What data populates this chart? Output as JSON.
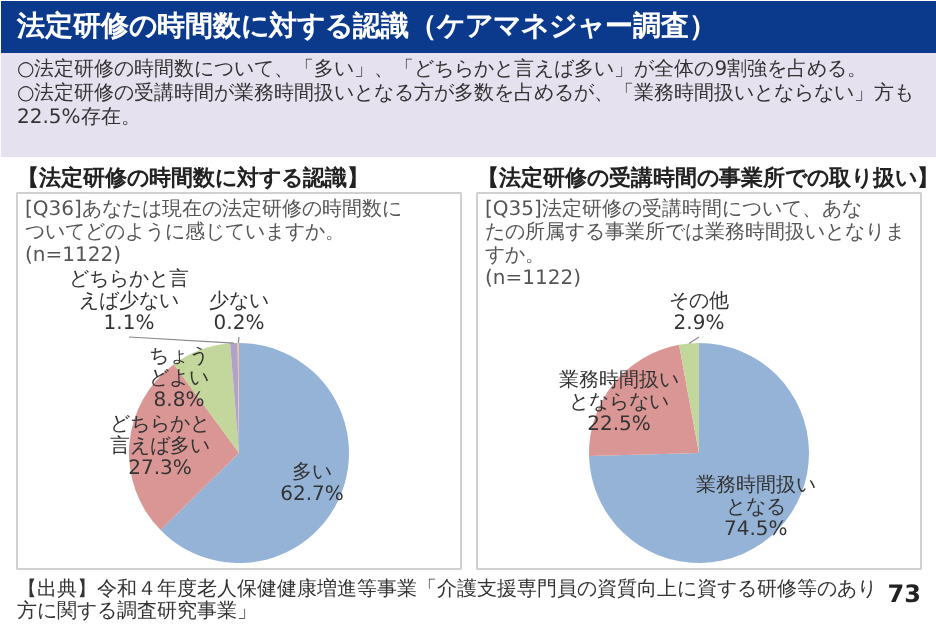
{
  "chart_data": [
    {
      "type": "other",
      "title": "法定研修の時間数に対する認識（ケアマネジャー調査）",
      "annotations": [
        "○法定研修の時間数について、「多い」、「どちらかと言えば多い」が全体の9割強を占める。",
        "○法定研修の受講時間が業務時間扱いとなる方が多数を占めるが、「業務時間扱いとならない」方も22.5%存在。",
        "【出典】令和４年度老人保健健康増進等事業「介護支援専門員の資質向上に資する研修等のあり方に関する調査研究事業」",
        "73"
      ]
    },
    {
      "type": "pie",
      "title": "【法定研修の時間数に対する認識】",
      "subtitle": "[Q36]あなたは現在の法定研修の時間数についてどのように感じていますか。",
      "annotations": [
        "(n=1122)"
      ],
      "categories": [
        "多い",
        "どちらかと言えば多い",
        "ちょうどよい",
        "どちらかと言えば少ない",
        "少ない"
      ],
      "values": [
        62.7,
        27.3,
        8.8,
        1.1,
        0.2
      ],
      "colors": [
        "#95b3d7",
        "#d99694",
        "#c3d69b",
        "#b3a2c7",
        "#fac090"
      ],
      "value_labels": [
        "62.7%",
        "27.3%",
        "8.8%",
        "1.1%",
        "0.2%"
      ]
    },
    {
      "type": "pie",
      "title": "【法定研修の受講時間の事業所での取り扱い】",
      "subtitle": "[Q35]法定研修の受講時間について、あなたの所属する事業所では業務時間扱いとなりますか。",
      "annotations": [
        "(n=1122)"
      ],
      "categories": [
        "業務時間扱いとなる",
        "業務時間扱いとならない",
        "その他"
      ],
      "values": [
        74.5,
        22.5,
        2.9
      ],
      "colors": [
        "#95b3d7",
        "#d99694",
        "#c3d69b"
      ],
      "value_labels": [
        "74.5%",
        "22.5%",
        "2.9%"
      ]
    }
  ]
}
